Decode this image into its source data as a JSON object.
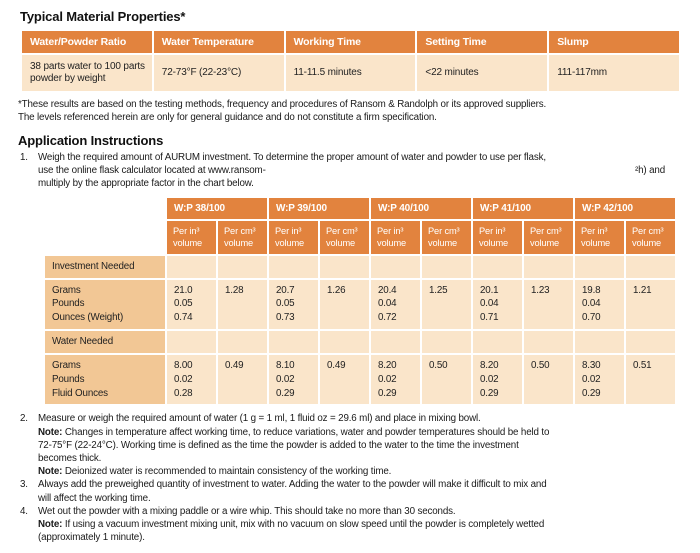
{
  "colors": {
    "header_orange": "#E2833E",
    "light_cell": "#FAE5CA",
    "medium_cell": "#F2C795",
    "header_text": "#FFFFFF",
    "body_text": "#1F1F1F"
  },
  "title": "Typical Material Properties*",
  "properties_table": {
    "headers": [
      "Water/Powder Ratio",
      "Water Temperature",
      "Working Time",
      "Setting Time",
      "Slump"
    ],
    "values": [
      "38 parts water to 100 parts powder by weight",
      "72-73°F (22-23°C)",
      "11-11.5 minutes",
      "<22 minutes",
      "111-117mm"
    ]
  },
  "footnote": "*These results are based on the testing methods, frequency and procedures of Ransom & Randolph or its approved suppliers.\nThe levels referenced herein are only for general guidance and do not constitute a firm specification.",
  "instructions": {
    "heading": "Application Instructions",
    "item1": {
      "number": "1.",
      "line1": "Weigh the required amount of AURUM investment. To determine the proper amount of water and powder to use per flask,",
      "line2_left": "use the online flask calculator located at www.ransom-",
      "line2_right": "²h) and",
      "line3": "multiply by the appropriate factor in the chart below."
    },
    "item2": {
      "number": "2.",
      "line1": "Measure or weigh the required amount of water (1 g = 1 ml, 1 fluid oz = 29.6 ml) and place in mixing bowl.",
      "note1_label": "Note:",
      "note1_line1": " Changes in temperature affect working time, to reduce variations, water and powder temperatures should be held to",
      "note1_line2": "72-75°F (22-24°C). Working time is defined as the time the powder is added to the water to the time the investment",
      "note1_line3": "becomes thick.",
      "note2_label": "Note:",
      "note2_text": " Deionized water is recommended to maintain consistency of the working time."
    },
    "item3": {
      "number": "3.",
      "line1": "Always add the preweighed quantity of investment to water. Adding the water to the powder will make it difficult to mix and",
      "line2": "will affect the working time."
    },
    "item4": {
      "number": "4.",
      "line1": "Wet out the powder with a mixing paddle or a wire whip. This should take no more than 30 seconds.",
      "note_label": "Note:",
      "note_line1": " If using a vacuum investment mixing unit, mix with no vacuum on slow speed until the powder is completely wetted",
      "note_line2": "(approximately 1 minute)."
    }
  },
  "ratio_table": {
    "groups": [
      "W:P 38/100",
      "W:P 39/100",
      "W:P 40/100",
      "W:P 41/100",
      "W:P 42/100"
    ],
    "sub_in": "Per in³\nvolume",
    "sub_cm": "Per cm³\nvolume",
    "sections": [
      {
        "label": "Investment Needed",
        "row_label": "Grams\nPounds\nOunces (Weight)",
        "cells": [
          {
            "in3": "21.0\n0.05\n0.74",
            "cm3": "1.28"
          },
          {
            "in3": "20.7\n0.05\n0.73",
            "cm3": "1.26"
          },
          {
            "in3": "20.4\n0.04\n0.72",
            "cm3": "1.25"
          },
          {
            "in3": "20.1\n0.04\n0.71",
            "cm3": "1.23"
          },
          {
            "in3": "19.8\n0.04\n0.70",
            "cm3": "1.21"
          }
        ]
      },
      {
        "label": "Water Needed",
        "row_label": "Grams\nPounds\nFluid Ounces",
        "cells": [
          {
            "in3": "8.00\n0.02\n0.28",
            "cm3": "0.49"
          },
          {
            "in3": "8.10\n0.02\n0.29",
            "cm3": "0.49"
          },
          {
            "in3": "8.20\n0.02\n0.29",
            "cm3": "0.50"
          },
          {
            "in3": "8.20\n0.02\n0.29",
            "cm3": "0.50"
          },
          {
            "in3": "8.30\n0.02\n0.29",
            "cm3": "0.51"
          }
        ]
      }
    ]
  }
}
